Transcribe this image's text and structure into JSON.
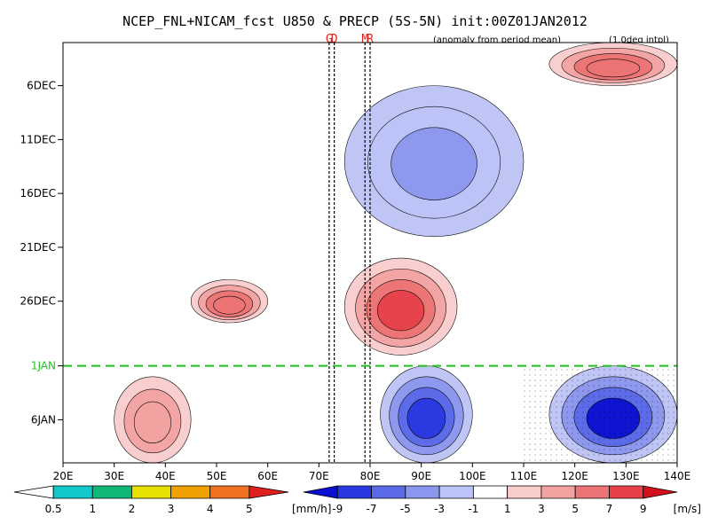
{
  "chart_data": {
    "type": "heatmap",
    "title": "NCEP_FNL+NICAM_fcst U850 & PRECP (5S-5N) init:00Z01JAN2012",
    "subtitle_left": "(anomaly from period mean)",
    "subtitle_right": "(1.0deg intpl)",
    "x_ticks": [
      "20E",
      "30E",
      "40E",
      "50E",
      "60E",
      "70E",
      "80E",
      "90E",
      "100E",
      "110E",
      "120E",
      "130E",
      "140E"
    ],
    "x_range": [
      20,
      140
    ],
    "y_ticks": [
      "6DEC",
      "11DEC",
      "16DEC",
      "21DEC",
      "26DEC",
      "1JAN",
      "6JAN"
    ],
    "y_range": [
      "2DEC2011",
      "10JAN2012"
    ],
    "forecast_init_label": "1JAN",
    "vertical_markers": [
      {
        "label": "G",
        "lon": 72
      },
      {
        "label": "D",
        "lon": 73
      },
      {
        "label": "M",
        "lon": 79
      },
      {
        "label": "R",
        "lon": 80
      }
    ],
    "u850_colorbar": {
      "levels": [
        "-9",
        "-7",
        "-5",
        "-3",
        "-1",
        "1",
        "3",
        "5",
        "7",
        "9"
      ],
      "unit": "[m/s]",
      "colors": [
        "#0a10d0",
        "#2838e0",
        "#5a6ae8",
        "#8b96ee",
        "#bcc3f6",
        "#ffffff",
        "#f9cccc",
        "#f3a2a2",
        "#ec7474",
        "#e6414a",
        "#d4101c"
      ]
    },
    "precip_colorbar": {
      "levels": [
        "0.5",
        "1",
        "2",
        "3",
        "4",
        "5"
      ],
      "unit": "[mm/h]",
      "colors": [
        "#ffffff",
        "#10c8c8",
        "#10b878",
        "#e8e000",
        "#f0a000",
        "#f07020",
        "#e02020"
      ]
    },
    "anomaly_regions": [
      {
        "lon": [
          45,
          60
        ],
        "date": [
          "24DEC",
          "28DEC"
        ],
        "sign": "positive",
        "peak": 7
      },
      {
        "lon": [
          75,
          97
        ],
        "date": [
          "22DEC",
          "31DEC"
        ],
        "sign": "positive",
        "peak": 9
      },
      {
        "lon": [
          82,
          100
        ],
        "date": [
          "1JAN",
          "10JAN"
        ],
        "sign": "negative",
        "peak": -7
      },
      {
        "lon": [
          115,
          140
        ],
        "date": [
          "1JAN",
          "10JAN"
        ],
        "sign": "negative",
        "peak": -9
      },
      {
        "lon": [
          30,
          45
        ],
        "date": [
          "2JAN",
          "10JAN"
        ],
        "sign": "positive",
        "peak": 5
      },
      {
        "lon": [
          115,
          140
        ],
        "date": [
          "2DEC",
          "6DEC"
        ],
        "sign": "positive",
        "peak": 7
      },
      {
        "lon": [
          75,
          110
        ],
        "date": [
          "6DEC",
          "20DEC"
        ],
        "sign": "negative",
        "peak": -3
      }
    ]
  }
}
